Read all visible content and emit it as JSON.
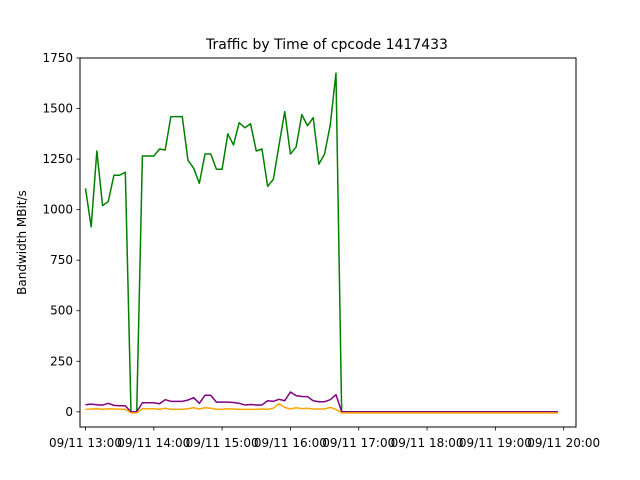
{
  "chart_data": {
    "type": "line",
    "title": "Traffic by Time of cpcode 1417433",
    "xlabel": "",
    "ylabel": "Bandwidth MBit/s",
    "xlim": [
      12.92,
      20.18
    ],
    "ylim": [
      -75,
      1750
    ],
    "x_ticks": [
      {
        "value": 13,
        "label": "09/11 13:00"
      },
      {
        "value": 14,
        "label": "09/11 14:00"
      },
      {
        "value": 15,
        "label": "09/11 15:00"
      },
      {
        "value": 16,
        "label": "09/11 16:00"
      },
      {
        "value": 17,
        "label": "09/11 17:00"
      },
      {
        "value": 18,
        "label": "09/11 18:00"
      },
      {
        "value": 19,
        "label": "09/11 19:00"
      },
      {
        "value": 20,
        "label": "09/11 20:00"
      }
    ],
    "y_ticks": [
      0,
      250,
      500,
      750,
      1000,
      1250,
      1500,
      1750
    ],
    "grid": false,
    "legend": "none",
    "series": [
      {
        "color": "#008000",
        "x": [
          13.0,
          13.0833,
          13.1667,
          13.25,
          13.3333,
          13.4167,
          13.5,
          13.5833,
          13.6667,
          13.75,
          13.8333,
          13.9167,
          14.0,
          14.0833,
          14.1667,
          14.25,
          14.3333,
          14.4167,
          14.5,
          14.5833,
          14.6667,
          14.75,
          14.8333,
          14.9167,
          15.0,
          15.0833,
          15.1667,
          15.25,
          15.3333,
          15.4167,
          15.5,
          15.5833,
          15.6667,
          15.75,
          15.8333,
          15.9167,
          16.0,
          16.0833,
          16.1667,
          16.25,
          16.3333,
          16.4167,
          16.5,
          16.5833,
          16.6667,
          16.75,
          16.8333,
          17.0,
          17.5,
          18.0,
          18.5,
          19.0,
          19.5,
          19.9167
        ],
        "y": [
          1105,
          915,
          1290,
          1020,
          1040,
          1170,
          1170,
          1185,
          0,
          0,
          1265,
          1265,
          1265,
          1300,
          1295,
          1460,
          1460,
          1460,
          1245,
          1205,
          1130,
          1275,
          1275,
          1200,
          1200,
          1375,
          1320,
          1430,
          1405,
          1425,
          1290,
          1300,
          1115,
          1150,
          1320,
          1485,
          1275,
          1310,
          1470,
          1415,
          1455,
          1225,
          1275,
          1420,
          1675,
          0,
          0,
          0,
          0,
          0,
          0,
          0,
          0,
          0
        ]
      },
      {
        "color": "#800080",
        "x": [
          13.0,
          13.0833,
          13.1667,
          13.25,
          13.3333,
          13.4167,
          13.5,
          13.5833,
          13.6667,
          13.75,
          13.8333,
          13.9167,
          14.0,
          14.0833,
          14.1667,
          14.25,
          14.3333,
          14.4167,
          14.5,
          14.5833,
          14.6667,
          14.75,
          14.8333,
          14.9167,
          15.0,
          15.0833,
          15.1667,
          15.25,
          15.3333,
          15.4167,
          15.5,
          15.5833,
          15.6667,
          15.75,
          15.8333,
          15.9167,
          16.0,
          16.0833,
          16.1667,
          16.25,
          16.3333,
          16.4167,
          16.5,
          16.5833,
          16.6667,
          16.75,
          16.8333,
          17.0,
          17.5,
          18.0,
          18.5,
          19.0,
          19.5,
          19.9167
        ],
        "y": [
          35,
          38,
          35,
          33,
          42,
          32,
          30,
          30,
          0,
          0,
          45,
          45,
          45,
          40,
          60,
          52,
          52,
          52,
          58,
          70,
          42,
          82,
          82,
          48,
          48,
          48,
          46,
          42,
          34,
          36,
          34,
          34,
          55,
          52,
          62,
          55,
          98,
          80,
          76,
          75,
          55,
          50,
          50,
          60,
          85,
          0,
          0,
          0,
          0,
          0,
          0,
          0,
          0,
          0
        ]
      },
      {
        "color": "#ffa500",
        "x": [
          13.0,
          13.0833,
          13.1667,
          13.25,
          13.3333,
          13.4167,
          13.5,
          13.5833,
          13.6667,
          13.75,
          13.8333,
          13.9167,
          14.0,
          14.0833,
          14.1667,
          14.25,
          14.3333,
          14.4167,
          14.5,
          14.5833,
          14.6667,
          14.75,
          14.8333,
          14.9167,
          15.0,
          15.0833,
          15.1667,
          15.25,
          15.3333,
          15.4167,
          15.5,
          15.5833,
          15.6667,
          15.75,
          15.8333,
          15.9167,
          16.0,
          16.0833,
          16.1667,
          16.25,
          16.3333,
          16.4167,
          16.5,
          16.5833,
          16.6667,
          16.75,
          16.8333,
          17.0,
          17.5,
          18.0,
          18.5,
          19.0,
          19.5,
          19.9167
        ],
        "y": [
          12,
          14,
          15,
          12,
          15,
          14,
          13,
          13,
          -5,
          -5,
          15,
          15,
          15,
          12,
          18,
          12,
          12,
          12,
          15,
          20,
          14,
          20,
          18,
          12,
          12,
          15,
          14,
          12,
          12,
          12,
          12,
          14,
          12,
          18,
          40,
          22,
          14,
          20,
          16,
          18,
          14,
          14,
          14,
          22,
          12,
          -5,
          -5,
          -5,
          -5,
          -5,
          -5,
          -5,
          -5,
          -5
        ]
      }
    ]
  }
}
